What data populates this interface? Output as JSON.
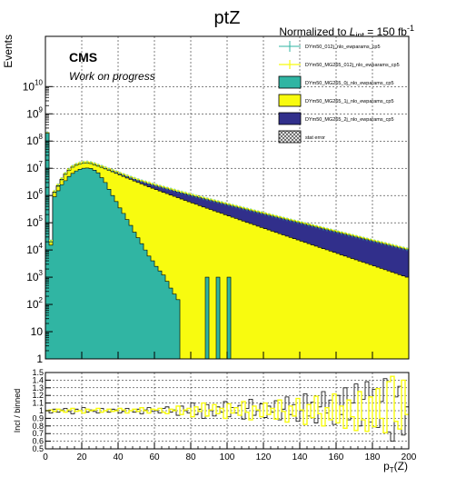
{
  "header": {
    "title": "ptZ",
    "lumi_prefix": "Normalized to ",
    "lumi_symbol": "L",
    "lumi_sub": "int",
    "lumi_value": " = 150 fb",
    "lumi_sup": "-1"
  },
  "labels": {
    "cms": "CMS",
    "work": "Work on progress"
  },
  "chart_data": [
    {
      "type": "histogram",
      "panel": "main",
      "title": "ptZ",
      "ylabel": "Events",
      "xlabel": "",
      "log_y": true,
      "xlim": [
        0,
        200
      ],
      "ylim": [
        1,
        700000000000
      ],
      "grid": true,
      "bin_width": 2,
      "y_ticks": [
        {
          "v": 1,
          "base": "1",
          "exp": ""
        },
        {
          "v": 10,
          "base": "10",
          "exp": ""
        },
        {
          "v": 100,
          "base": "10",
          "exp": "2"
        },
        {
          "v": 1000,
          "base": "10",
          "exp": "3"
        },
        {
          "v": 10000,
          "base": "10",
          "exp": "4"
        },
        {
          "v": 100000,
          "base": "10",
          "exp": "5"
        },
        {
          "v": 1000000,
          "base": "10",
          "exp": "6"
        },
        {
          "v": 10000000,
          "base": "10",
          "exp": "7"
        },
        {
          "v": 100000000,
          "base": "10",
          "exp": "8"
        },
        {
          "v": 1000000000,
          "base": "10",
          "exp": "9"
        },
        {
          "v": 10000000000,
          "base": "10",
          "exp": "10"
        }
      ],
      "stack_edges": [
        {
          "name": "DYm50_MG265_0j_nlo_ewparams_cp5",
          "color": "#30b5a3",
          "top": [
            200000000,
            15000,
            900000,
            1500000,
            2500000,
            3500000,
            5000000,
            6500000,
            8000000,
            9200000,
            10000000,
            10200000,
            9800000,
            8500000,
            6800000,
            4500000,
            3000000,
            1700000,
            1000000,
            600000,
            350000,
            220000,
            130000,
            80000,
            45000,
            28000,
            17000,
            10000,
            6000,
            4000,
            2500,
            1700,
            1200,
            700,
            400,
            240,
            150,
            1,
            1,
            1,
            1,
            1,
            1,
            1,
            1000,
            1,
            1,
            1000,
            1,
            1,
            1000,
            1,
            1,
            1,
            1,
            1,
            1,
            1,
            1,
            1,
            1,
            1,
            1,
            1,
            1,
            1,
            1,
            1,
            1,
            1,
            1,
            1,
            1,
            1,
            1,
            1,
            1,
            1,
            1,
            1,
            1,
            1,
            1,
            1,
            1,
            1,
            1,
            1,
            1,
            1,
            1,
            1,
            1,
            1,
            1,
            1,
            1,
            1,
            1,
            1
          ]
        },
        {
          "name": "DYm50_MG265_1j_nlo_ewparams_cp5",
          "color": "#f8fb0f",
          "top": [
            200000000,
            20000,
            1300000,
            2200000,
            3800000,
            6000000,
            8500000,
            11000000,
            13000000,
            14500000,
            15500000,
            15800000,
            15000000,
            13500000,
            12000000,
            10800000,
            9500000,
            8400000,
            7400000,
            6500000,
            5700000,
            5000000,
            4400000,
            3900000,
            3400000,
            3000000,
            2650000,
            2350000,
            2080000,
            1850000,
            1650000,
            1470000,
            1310000,
            1170000,
            1040000,
            930000,
            830000,
            740000,
            660000,
            590000,
            530000,
            475000,
            425000,
            380000,
            340000,
            305000,
            273000,
            245000,
            220000,
            197000,
            177000,
            159000,
            143000,
            128000,
            115000,
            103000,
            93000,
            83500,
            75000,
            67500,
            60500,
            54500,
            49000,
            44000,
            39500,
            35500,
            32000,
            28800,
            25900,
            23300,
            21000,
            18900,
            17000,
            15300,
            13800,
            12400,
            11200,
            10100,
            9100,
            8200,
            7400,
            6600,
            6000,
            5400,
            4850,
            4370,
            3930,
            3540,
            3190,
            2870,
            2580,
            2330,
            2090,
            1880,
            1700,
            1530,
            1370,
            1240,
            1110,
            1000
          ]
        },
        {
          "name": "DYm50_MG265_2j_nlo_ewparams_cp5",
          "color": "#312f8b",
          "top": [
            200000000,
            20000,
            1350000,
            2300000,
            3950000,
            6250000,
            8850000,
            11450000,
            13550000,
            15100000,
            16150000,
            16500000,
            15700000,
            14200000,
            12700000,
            11500000,
            10200000,
            9100000,
            8100000,
            7200000,
            6400000,
            5700000,
            5100000,
            4600000,
            4100000,
            3700000,
            3350000,
            3050000,
            2780000,
            2540000,
            2330000,
            2140000,
            1970000,
            1800000,
            1650000,
            1510000,
            1390000,
            1280000,
            1180000,
            1090000,
            1000000,
            920000,
            850000,
            785000,
            725000,
            670000,
            620000,
            573000,
            530000,
            490000,
            453000,
            419000,
            388000,
            359000,
            332000,
            307000,
            284000,
            263000,
            243000,
            225000,
            208000,
            193000,
            178000,
            165000,
            153000,
            141000,
            131000,
            121000,
            112000,
            104000,
            96000,
            89000,
            82000,
            76000,
            70500,
            65000,
            60500,
            56000,
            52000,
            48000,
            44500,
            41000,
            38000,
            35500,
            33000,
            30500,
            28000,
            26000,
            24000,
            22500,
            21000,
            19500,
            18000,
            16500,
            15500,
            14300,
            13200,
            12200,
            11300,
            10500
          ]
        }
      ],
      "data_series": {
        "name": "DYm50_012j_nlo_ewparams_cp5",
        "color": "#30b5a3",
        "values": [
          200000000,
          21000,
          1400000,
          2400000,
          4100000,
          6400000,
          9000000,
          11700000,
          13800000,
          15400000,
          16500000,
          16800000,
          16000000,
          14500000,
          12900000,
          11700000,
          10400000,
          9250000,
          8250000,
          7350000,
          6500000,
          5800000,
          5200000,
          4650000,
          4150000,
          3750000,
          3400000,
          3100000,
          2820000,
          2580000,
          2370000,
          2170000,
          2000000,
          1830000,
          1680000,
          1540000,
          1410000,
          1300000,
          1200000,
          1110000,
          1020000,
          940000,
          870000,
          800000,
          740000,
          685000,
          632000,
          585000,
          541000,
          500000,
          463000,
          428000,
          396000,
          366000,
          339000,
          313000,
          290000,
          268000,
          248000,
          230000,
          212000,
          197000,
          182000,
          168000,
          156000,
          144000,
          134000,
          124000,
          115000,
          106000,
          98000,
          91000,
          84000,
          78000,
          72000,
          66500,
          61500,
          57000,
          53000,
          49000,
          45500,
          42000,
          39000,
          36000,
          33500,
          31000,
          28800,
          26700,
          24700,
          22900,
          21200,
          19700,
          18200,
          16900,
          15700,
          14500,
          13400,
          12400,
          11500,
          10700
        ]
      },
      "overlay_line": {
        "name": "DYm50_MG265_012j_nlo_ewparams_cp5",
        "color": "#f8fb0f",
        "values": [
          200000000,
          22000,
          1450000,
          2500000,
          4250000,
          6600000,
          9300000,
          12000000,
          14200000,
          15800000,
          16900000,
          17200000,
          16400000,
          14900000,
          13300000,
          12000000,
          10700000,
          9550000,
          8500000,
          7580000,
          6720000,
          6000000,
          5380000,
          4810000,
          4300000,
          3880000,
          3520000,
          3210000,
          2920000,
          2670000,
          2450000,
          2250000,
          2070000,
          1900000,
          1740000,
          1600000,
          1470000,
          1350000,
          1250000,
          1150000,
          1060000,
          980000,
          905000,
          835000,
          772000,
          713000,
          659000,
          609000,
          563000,
          521000,
          482000,
          446000,
          413000,
          382000,
          353000,
          327000,
          302000,
          280000,
          259000,
          240000,
          222000,
          205000,
          190000,
          176000,
          163000,
          151000,
          140000,
          129000,
          120000,
          111000,
          103000,
          95000,
          88000,
          81500,
          75500,
          70000,
          65000,
          60000,
          55500,
          51500,
          47700,
          44200,
          41000,
          38000,
          35200,
          32600,
          30200,
          28000,
          25900,
          24000,
          22200,
          20600,
          19100,
          17700,
          16400,
          15200,
          14100,
          13000,
          12100,
          11200
        ]
      },
      "stat_error": {
        "name": "stat error"
      }
    },
    {
      "type": "histogram",
      "panel": "ratio",
      "ylabel": "Incl / binned",
      "xlabel": "p_T(Z)",
      "xlabel_main": "p",
      "xlabel_sub": "T",
      "xlabel_rest": "(Z)",
      "xlim": [
        0,
        200
      ],
      "ylim": [
        0.5,
        1.5
      ],
      "grid": true,
      "x_ticks": [
        0,
        20,
        40,
        60,
        80,
        100,
        120,
        140,
        160,
        180,
        200
      ],
      "y_ticks": [
        0.5,
        0.6,
        0.7,
        0.8,
        0.9,
        1.0,
        1.1,
        1.2,
        1.3,
        1.4,
        1.5
      ],
      "y_tick_labels": [
        "0.5",
        "0.6",
        "0.7",
        "0.8",
        "0.9",
        "1",
        "1.1",
        "1.2",
        "1.3",
        "1.4",
        "1.5"
      ],
      "series": [
        {
          "name": "DYm50_012j_nlo_ewparams_cp5",
          "color": "#000000",
          "values": [
            1.0,
            0.97,
            1.02,
            0.98,
            1.01,
            1.03,
            0.99,
            0.96,
            1.02,
            1.0,
            1.04,
            0.98,
            1.01,
            0.99,
            0.97,
            1.03,
            1.0,
            0.98,
            1.02,
            1.01,
            0.97,
            0.99,
            1.03,
            1.0,
            0.98,
            1.02,
            0.96,
            1.01,
            1.04,
            0.99,
            1.0,
            0.97,
            1.03,
            1.05,
            0.98,
            1.01,
            0.94,
            1.06,
            1.0,
            0.97,
            1.1,
            0.95,
            1.02,
            0.9,
            1.08,
            1.0,
            0.93,
            1.05,
            0.98,
            1.12,
            0.92,
            1.04,
            0.97,
            1.07,
            0.89,
            1.03,
            1.15,
            0.94,
            1.0,
            1.09,
            0.91,
            1.06,
            0.98,
            1.13,
            0.88,
            1.02,
            1.18,
            0.95,
            1.08,
            0.86,
            1.0,
            1.22,
            0.93,
            1.11,
            0.84,
            1.05,
            1.25,
            0.97,
            1.14,
            0.82,
            1.2,
            0.95,
            1.3,
            0.88,
            1.1,
            1.35,
            0.8,
            1.15,
            1.38,
            0.85,
            1.28,
            0.78,
            1.12,
            1.42,
            0.72,
            0.6,
            1.18,
            1.32,
            0.68,
            1.05
          ]
        },
        {
          "name": "DYm50_MG265_012j_nlo_ewparams_cp5",
          "color": "#f8fb0f",
          "values": [
            1.0,
            1.01,
            0.99,
            1.02,
            1.0,
            0.98,
            1.01,
            1.03,
            0.99,
            1.0,
            0.97,
            1.02,
            1.0,
            1.01,
            1.03,
            0.98,
            1.0,
            1.02,
            0.99,
            1.0,
            1.03,
            1.01,
            0.97,
            1.0,
            1.02,
            0.99,
            1.04,
            1.0,
            0.97,
            1.02,
            1.01,
            1.03,
            0.98,
            0.96,
            1.02,
            1.0,
            1.06,
            0.95,
            1.01,
            1.03,
            0.92,
            1.05,
            0.99,
            1.1,
            0.93,
            1.01,
            1.08,
            0.96,
            1.03,
            0.9,
            1.09,
            0.97,
            1.04,
            0.94,
            1.12,
            0.98,
            0.88,
            1.06,
            1.01,
            0.92,
            1.1,
            0.95,
            1.03,
            0.89,
            1.14,
            0.99,
            0.85,
            1.06,
            0.93,
            1.16,
            1.01,
            0.82,
            1.08,
            0.91,
            1.19,
            0.96,
            0.8,
            1.04,
            0.88,
            1.22,
            0.84,
            1.06,
            0.77,
            1.14,
            0.92,
            0.74,
            1.25,
            0.88,
            0.73,
            1.18,
            0.79,
            1.29,
            0.9,
            0.71,
            1.38,
            1.45,
            0.86,
            0.76,
            1.4,
            0.95
          ]
        }
      ]
    }
  ]
}
